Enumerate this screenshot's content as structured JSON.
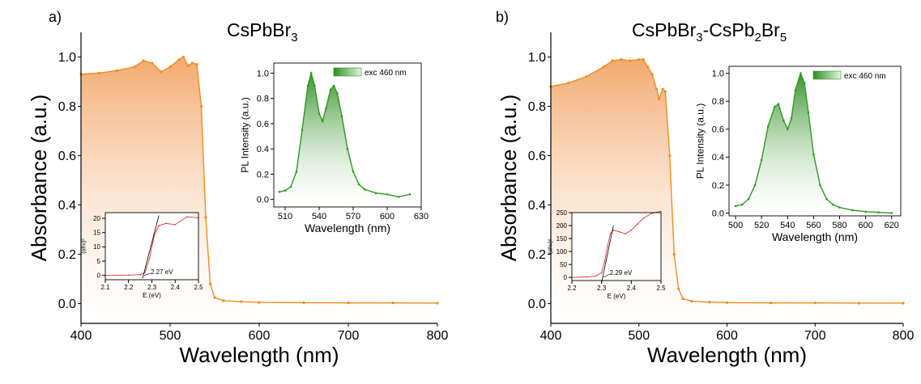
{
  "figure": {
    "panel_a_label": "a)",
    "panel_b_label": "b)"
  },
  "colors": {
    "absorbance": "#f28c1e",
    "absorbance_fill": "#f2b27c",
    "pl": "#2c9a20",
    "pl_fill": "#5aad45",
    "tauc": "#e0302a"
  },
  "chart_data": [
    {
      "id": "a_main",
      "type": "area",
      "title": "CsPbBr",
      "title_sub": "3",
      "xlabel": "Wavelength (nm)",
      "ylabel": "Absorbance (a.u.)",
      "xlim": [
        400,
        800
      ],
      "ylim": [
        -0.08,
        1.1
      ],
      "xticks": [
        400,
        500,
        600,
        700,
        800
      ],
      "yticks": [
        "0.0",
        "0.2",
        "0.4",
        "0.6",
        "0.8",
        "1.0"
      ],
      "series": [
        {
          "x": [
            400,
            420,
            440,
            460,
            470,
            480,
            490,
            500,
            510,
            515,
            520,
            525,
            530,
            535,
            540,
            545,
            550,
            560,
            580,
            600,
            650,
            700,
            750,
            800
          ],
          "y": [
            0.93,
            0.935,
            0.945,
            0.96,
            0.985,
            0.975,
            0.94,
            0.96,
            0.99,
            1.0,
            0.965,
            0.975,
            0.97,
            0.8,
            0.35,
            0.08,
            0.025,
            0.012,
            0.008,
            0.005,
            0.004,
            0.003,
            0.003,
            0.002
          ]
        }
      ]
    },
    {
      "id": "a_pl",
      "type": "line",
      "xlabel": "Wavelength (nm)",
      "ylabel": "PL Intensity (a.u.)",
      "xlim": [
        500,
        630
      ],
      "ylim": [
        -0.06,
        1.08
      ],
      "xticks": [
        510,
        540,
        570,
        600,
        630
      ],
      "yticks": [
        "0.0",
        "0.2",
        "0.4",
        "0.6",
        "0.8",
        "1.0"
      ],
      "legend": "exc 460 nm",
      "legend_position": "top-right",
      "series": [
        {
          "x": [
            505,
            510,
            515,
            520,
            525,
            530,
            533,
            536,
            540,
            543,
            546,
            550,
            553,
            556,
            560,
            565,
            570,
            575,
            580,
            590,
            600,
            610,
            620
          ],
          "y": [
            0.06,
            0.07,
            0.1,
            0.22,
            0.55,
            0.9,
            1.0,
            0.9,
            0.68,
            0.62,
            0.72,
            0.87,
            0.9,
            0.84,
            0.66,
            0.4,
            0.22,
            0.12,
            0.08,
            0.05,
            0.04,
            0.02,
            0.04
          ]
        }
      ]
    },
    {
      "id": "a_tauc",
      "type": "line",
      "xlabel": "E (eV)",
      "ylabel": "(αhν)²",
      "xlim": [
        2.1,
        2.5
      ],
      "ylim": [
        -1.5,
        22
      ],
      "xticks": [
        "2.1",
        "2.2",
        "2.3",
        "2.4",
        "2.5"
      ],
      "yticks": [
        "0",
        "5",
        "10",
        "15",
        "20"
      ],
      "annotation": "2.27 eV",
      "series": [
        {
          "x": [
            2.1,
            2.2,
            2.25,
            2.27,
            2.29,
            2.31,
            2.33,
            2.36,
            2.4,
            2.45,
            2.5
          ],
          "y": [
            0,
            0.1,
            0.3,
            1.0,
            6,
            14,
            17.5,
            18.2,
            17.8,
            20.5,
            20.2
          ]
        }
      ],
      "fit": {
        "x": [
          2.26,
          2.33
        ],
        "y": [
          -1,
          21
        ]
      }
    },
    {
      "id": "b_main",
      "type": "area",
      "title": "CsPbBr",
      "title_sub": "3",
      "title_mid": "-CsPb",
      "title_sub2": "2",
      "title_end": "Br",
      "title_sub3": "5",
      "xlabel": "Wavelength (nm)",
      "ylabel": "Absorbance (a.u.)",
      "xlim": [
        400,
        800
      ],
      "ylim": [
        -0.08,
        1.1
      ],
      "xticks": [
        400,
        500,
        600,
        700,
        800
      ],
      "yticks": [
        "0.0",
        "0.2",
        "0.4",
        "0.6",
        "0.8",
        "1.0"
      ],
      "series": [
        {
          "x": [
            400,
            420,
            440,
            460,
            470,
            480,
            490,
            500,
            505,
            510,
            515,
            520,
            523,
            527,
            530,
            535,
            540,
            545,
            550,
            560,
            580,
            600,
            650,
            700,
            750,
            800
          ],
          "y": [
            0.88,
            0.895,
            0.92,
            0.96,
            0.985,
            0.99,
            0.985,
            0.99,
            0.99,
            0.96,
            0.93,
            0.87,
            0.83,
            0.87,
            0.86,
            0.6,
            0.2,
            0.06,
            0.02,
            0.01,
            0.006,
            0.004,
            0.003,
            0.003,
            0.002,
            0.002
          ]
        }
      ]
    },
    {
      "id": "b_pl",
      "type": "line",
      "xlabel": "Wavelength (nm)",
      "ylabel": "PL Intensity (a.u.)",
      "xlim": [
        495,
        627
      ],
      "ylim": [
        -0.02,
        1.05
      ],
      "xticks": [
        500,
        520,
        540,
        560,
        580,
        600,
        620
      ],
      "yticks": [
        "0.0",
        "0.2",
        "0.4",
        "0.6",
        "0.8",
        "1.0"
      ],
      "legend": "exc 460 nm",
      "legend_position": "top-right",
      "series": [
        {
          "x": [
            500,
            505,
            510,
            515,
            520,
            525,
            530,
            533,
            537,
            540,
            543,
            546,
            550,
            553,
            556,
            560,
            565,
            570,
            575,
            580,
            590,
            600,
            610,
            620
          ],
          "y": [
            0.05,
            0.06,
            0.1,
            0.2,
            0.38,
            0.62,
            0.76,
            0.78,
            0.66,
            0.6,
            0.68,
            0.88,
            1.0,
            0.93,
            0.72,
            0.42,
            0.2,
            0.1,
            0.06,
            0.04,
            0.02,
            0.01,
            0.005,
            0.0
          ]
        }
      ]
    },
    {
      "id": "b_tauc",
      "type": "line",
      "xlabel": "E (eV)",
      "ylabel": "(αhν)²",
      "xlim": [
        2.2,
        2.5
      ],
      "ylim": [
        -12,
        250
      ],
      "xticks": [
        "2.2",
        "2.3",
        "2.4",
        "2.5"
      ],
      "yticks": [
        "0",
        "50",
        "100",
        "150",
        "200",
        "250"
      ],
      "annotation": "2.29 eV",
      "series": [
        {
          "x": [
            2.2,
            2.25,
            2.28,
            2.3,
            2.31,
            2.32,
            2.33,
            2.34,
            2.36,
            2.38,
            2.4,
            2.42,
            2.44,
            2.47,
            2.5
          ],
          "y": [
            0,
            2,
            5,
            18,
            60,
            120,
            170,
            182,
            176,
            168,
            182,
            205,
            228,
            248,
            255
          ]
        }
      ],
      "fit": {
        "x": [
          2.3,
          2.34
        ],
        "y": [
          -20,
          200
        ]
      }
    }
  ]
}
